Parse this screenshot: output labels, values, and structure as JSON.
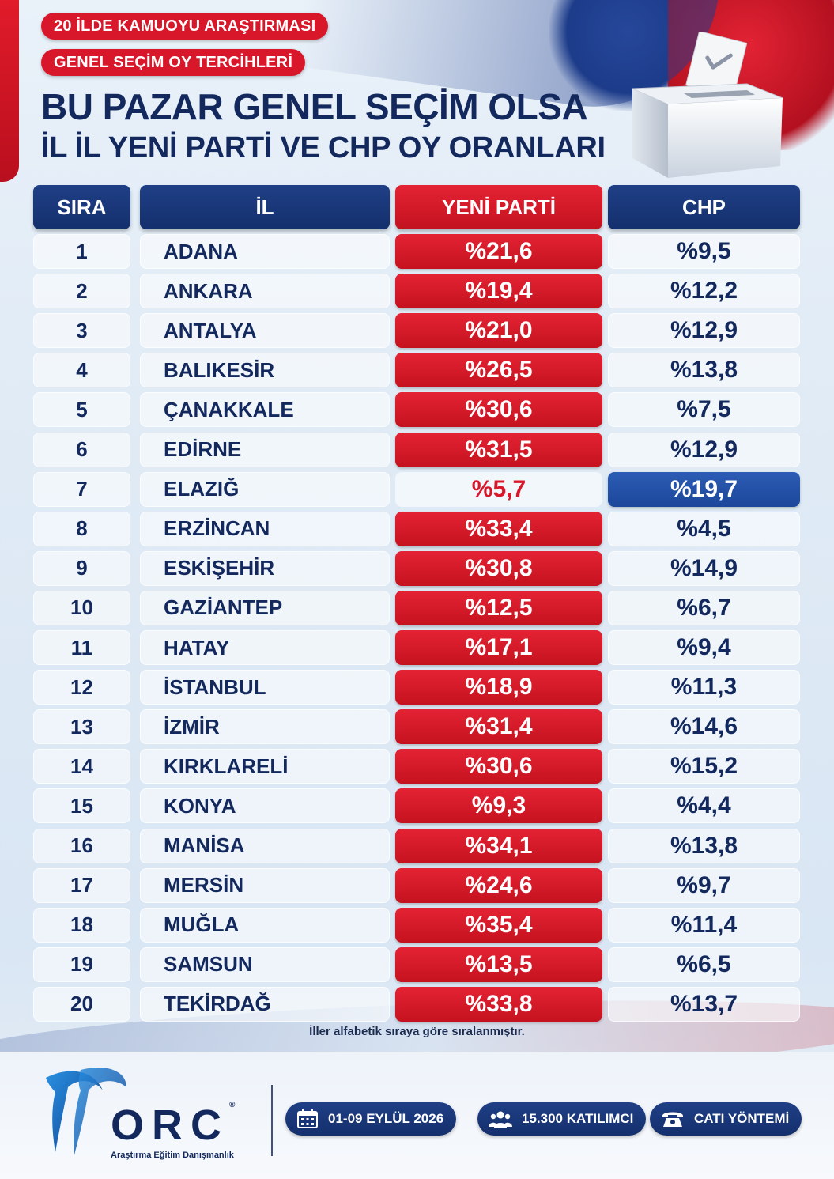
{
  "header": {
    "pill1": "20 İLDE KAMUOYU ARAŞTIRMASI",
    "pill2": "GENEL SEÇİM OY TERCİHLERİ",
    "title1": "BU PAZAR GENEL SEÇİM OLSA",
    "title2": "İL İL YENİ PARTİ VE CHP OY ORANLARI"
  },
  "colors": {
    "red": "#d8182a",
    "navy": "#13295e",
    "highlight_blue": "#2558b0"
  },
  "chart_data": {
    "type": "table",
    "columns": [
      "SIRA",
      "İL",
      "YENİ PARTİ",
      "CHP"
    ],
    "rows": [
      {
        "sira": "1",
        "il": "ADANA",
        "yeni": "%21,6",
        "chp": "%9,5"
      },
      {
        "sira": "2",
        "il": "ANKARA",
        "yeni": "%19,4",
        "chp": "%12,2"
      },
      {
        "sira": "3",
        "il": "ANTALYA",
        "yeni": "%21,0",
        "chp": "%12,9"
      },
      {
        "sira": "4",
        "il": "BALIKESİR",
        "yeni": "%26,5",
        "chp": "%13,8"
      },
      {
        "sira": "5",
        "il": "ÇANAKKALE",
        "yeni": "%30,6",
        "chp": "%7,5"
      },
      {
        "sira": "6",
        "il": "EDİRNE",
        "yeni": "%31,5",
        "chp": "%12,9"
      },
      {
        "sira": "7",
        "il": "ELAZIĞ",
        "yeni": "%5,7",
        "chp": "%19,7",
        "leader": "chp"
      },
      {
        "sira": "8",
        "il": "ERZİNCAN",
        "yeni": "%33,4",
        "chp": "%4,5"
      },
      {
        "sira": "9",
        "il": "ESKİŞEHİR",
        "yeni": "%30,8",
        "chp": "%14,9"
      },
      {
        "sira": "10",
        "il": "GAZİANTEP",
        "yeni": "%12,5",
        "chp": "%6,7"
      },
      {
        "sira": "11",
        "il": "HATAY",
        "yeni": "%17,1",
        "chp": "%9,4"
      },
      {
        "sira": "12",
        "il": "İSTANBUL",
        "yeni": "%18,9",
        "chp": "%11,3"
      },
      {
        "sira": "13",
        "il": "İZMİR",
        "yeni": "%31,4",
        "chp": "%14,6"
      },
      {
        "sira": "14",
        "il": "KIRKLARELİ",
        "yeni": "%30,6",
        "chp": "%15,2"
      },
      {
        "sira": "15",
        "il": "KONYA",
        "yeni": "%9,3",
        "chp": "%4,4"
      },
      {
        "sira": "16",
        "il": "MANİSA",
        "yeni": "%34,1",
        "chp": "%13,8"
      },
      {
        "sira": "17",
        "il": "MERSİN",
        "yeni": "%24,6",
        "chp": "%9,7"
      },
      {
        "sira": "18",
        "il": "MUĞLA",
        "yeni": "%35,4",
        "chp": "%11,4"
      },
      {
        "sira": "19",
        "il": "SAMSUN",
        "yeni": "%13,5",
        "chp": "%6,5"
      },
      {
        "sira": "20",
        "il": "TEKİRDAĞ",
        "yeni": "%33,8",
        "chp": "%13,7"
      }
    ]
  },
  "note": "İller alfabetik sıraya göre sıralanmıştır.",
  "footer": {
    "logo_text": "ORC",
    "logo_registered": "®",
    "logo_subtitle": "Araştırma Eğitim Danışmanlık",
    "date": "01-09 EYLÜL 2026",
    "participants": "15.300 KATILIMCI",
    "method": "CATI YÖNTEMİ",
    "icons": [
      "calendar-icon",
      "people-icon",
      "phone-icon"
    ]
  }
}
